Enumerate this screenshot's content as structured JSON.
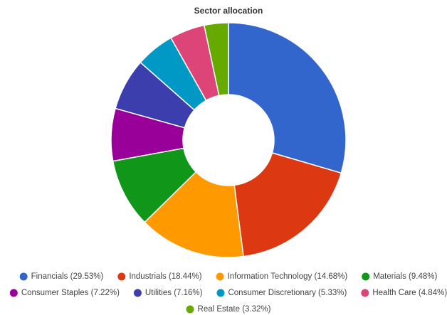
{
  "chart_data": {
    "type": "pie",
    "title": "Sector allocation",
    "categories": [
      "Financials",
      "Industrials",
      "Information Technology",
      "Materials",
      "Consumer Staples",
      "Utilities",
      "Consumer Discretionary",
      "Health Care",
      "Real Estate"
    ],
    "values": [
      29.53,
      18.44,
      14.68,
      9.48,
      7.22,
      7.16,
      5.33,
      4.84,
      3.32
    ],
    "value_labels": [
      "(29.53%)",
      "(18.44%)",
      "(14.68%)",
      "(9.48%)",
      "(7.22%)",
      "(7.16%)",
      "(5.33%)",
      "(4.84%)",
      "(3.32%)"
    ],
    "colors": [
      "#3366cc",
      "#dc3912",
      "#ff9900",
      "#109618",
      "#990099",
      "#3b3eac",
      "#0099c6",
      "#dd4477",
      "#66aa00"
    ]
  }
}
